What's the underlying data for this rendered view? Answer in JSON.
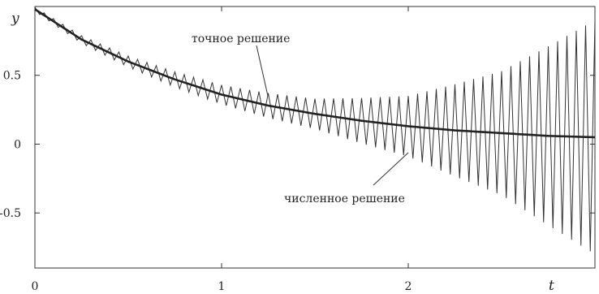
{
  "chart_data": {
    "type": "line",
    "title": "",
    "xlabel": "t",
    "ylabel": "y",
    "xlim": [
      0,
      3
    ],
    "ylim": [
      -0.9,
      1.0
    ],
    "x_ticks": [
      0,
      1,
      2,
      3
    ],
    "x_tick_labels": [
      "0",
      "1",
      "2",
      ""
    ],
    "y_ticks": [
      0.5,
      0,
      -0.5
    ],
    "y_tick_labels": [
      "0.5",
      "0",
      "-0.5"
    ],
    "grid": false,
    "series": [
      {
        "name": "точное решение",
        "model": "exponential decay",
        "x": [
          0,
          0.25,
          0.5,
          0.75,
          1.0,
          1.25,
          1.5,
          1.75,
          2.0,
          2.25,
          2.5,
          2.75,
          3.0
        ],
        "y": [
          0.98,
          0.76,
          0.6,
          0.47,
          0.36,
          0.28,
          0.22,
          0.17,
          0.13,
          0.1,
          0.08,
          0.06,
          0.05
        ]
      },
      {
        "name": "численное решение",
        "model": "oscillation around the exact solution with growing amplitude",
        "oscillation_count": 60,
        "amplitude": {
          "t": [
            0,
            0.5,
            1.0,
            1.5,
            2.0,
            2.5,
            3.0
          ],
          "value": [
            0.015,
            0.04,
            0.07,
            0.11,
            0.22,
            0.45,
            0.85
          ]
        }
      }
    ],
    "annotations": [
      {
        "text": "точное решение",
        "points_to": "точное решение"
      },
      {
        "text": "численное решение",
        "points_to": "численное решение"
      }
    ]
  }
}
